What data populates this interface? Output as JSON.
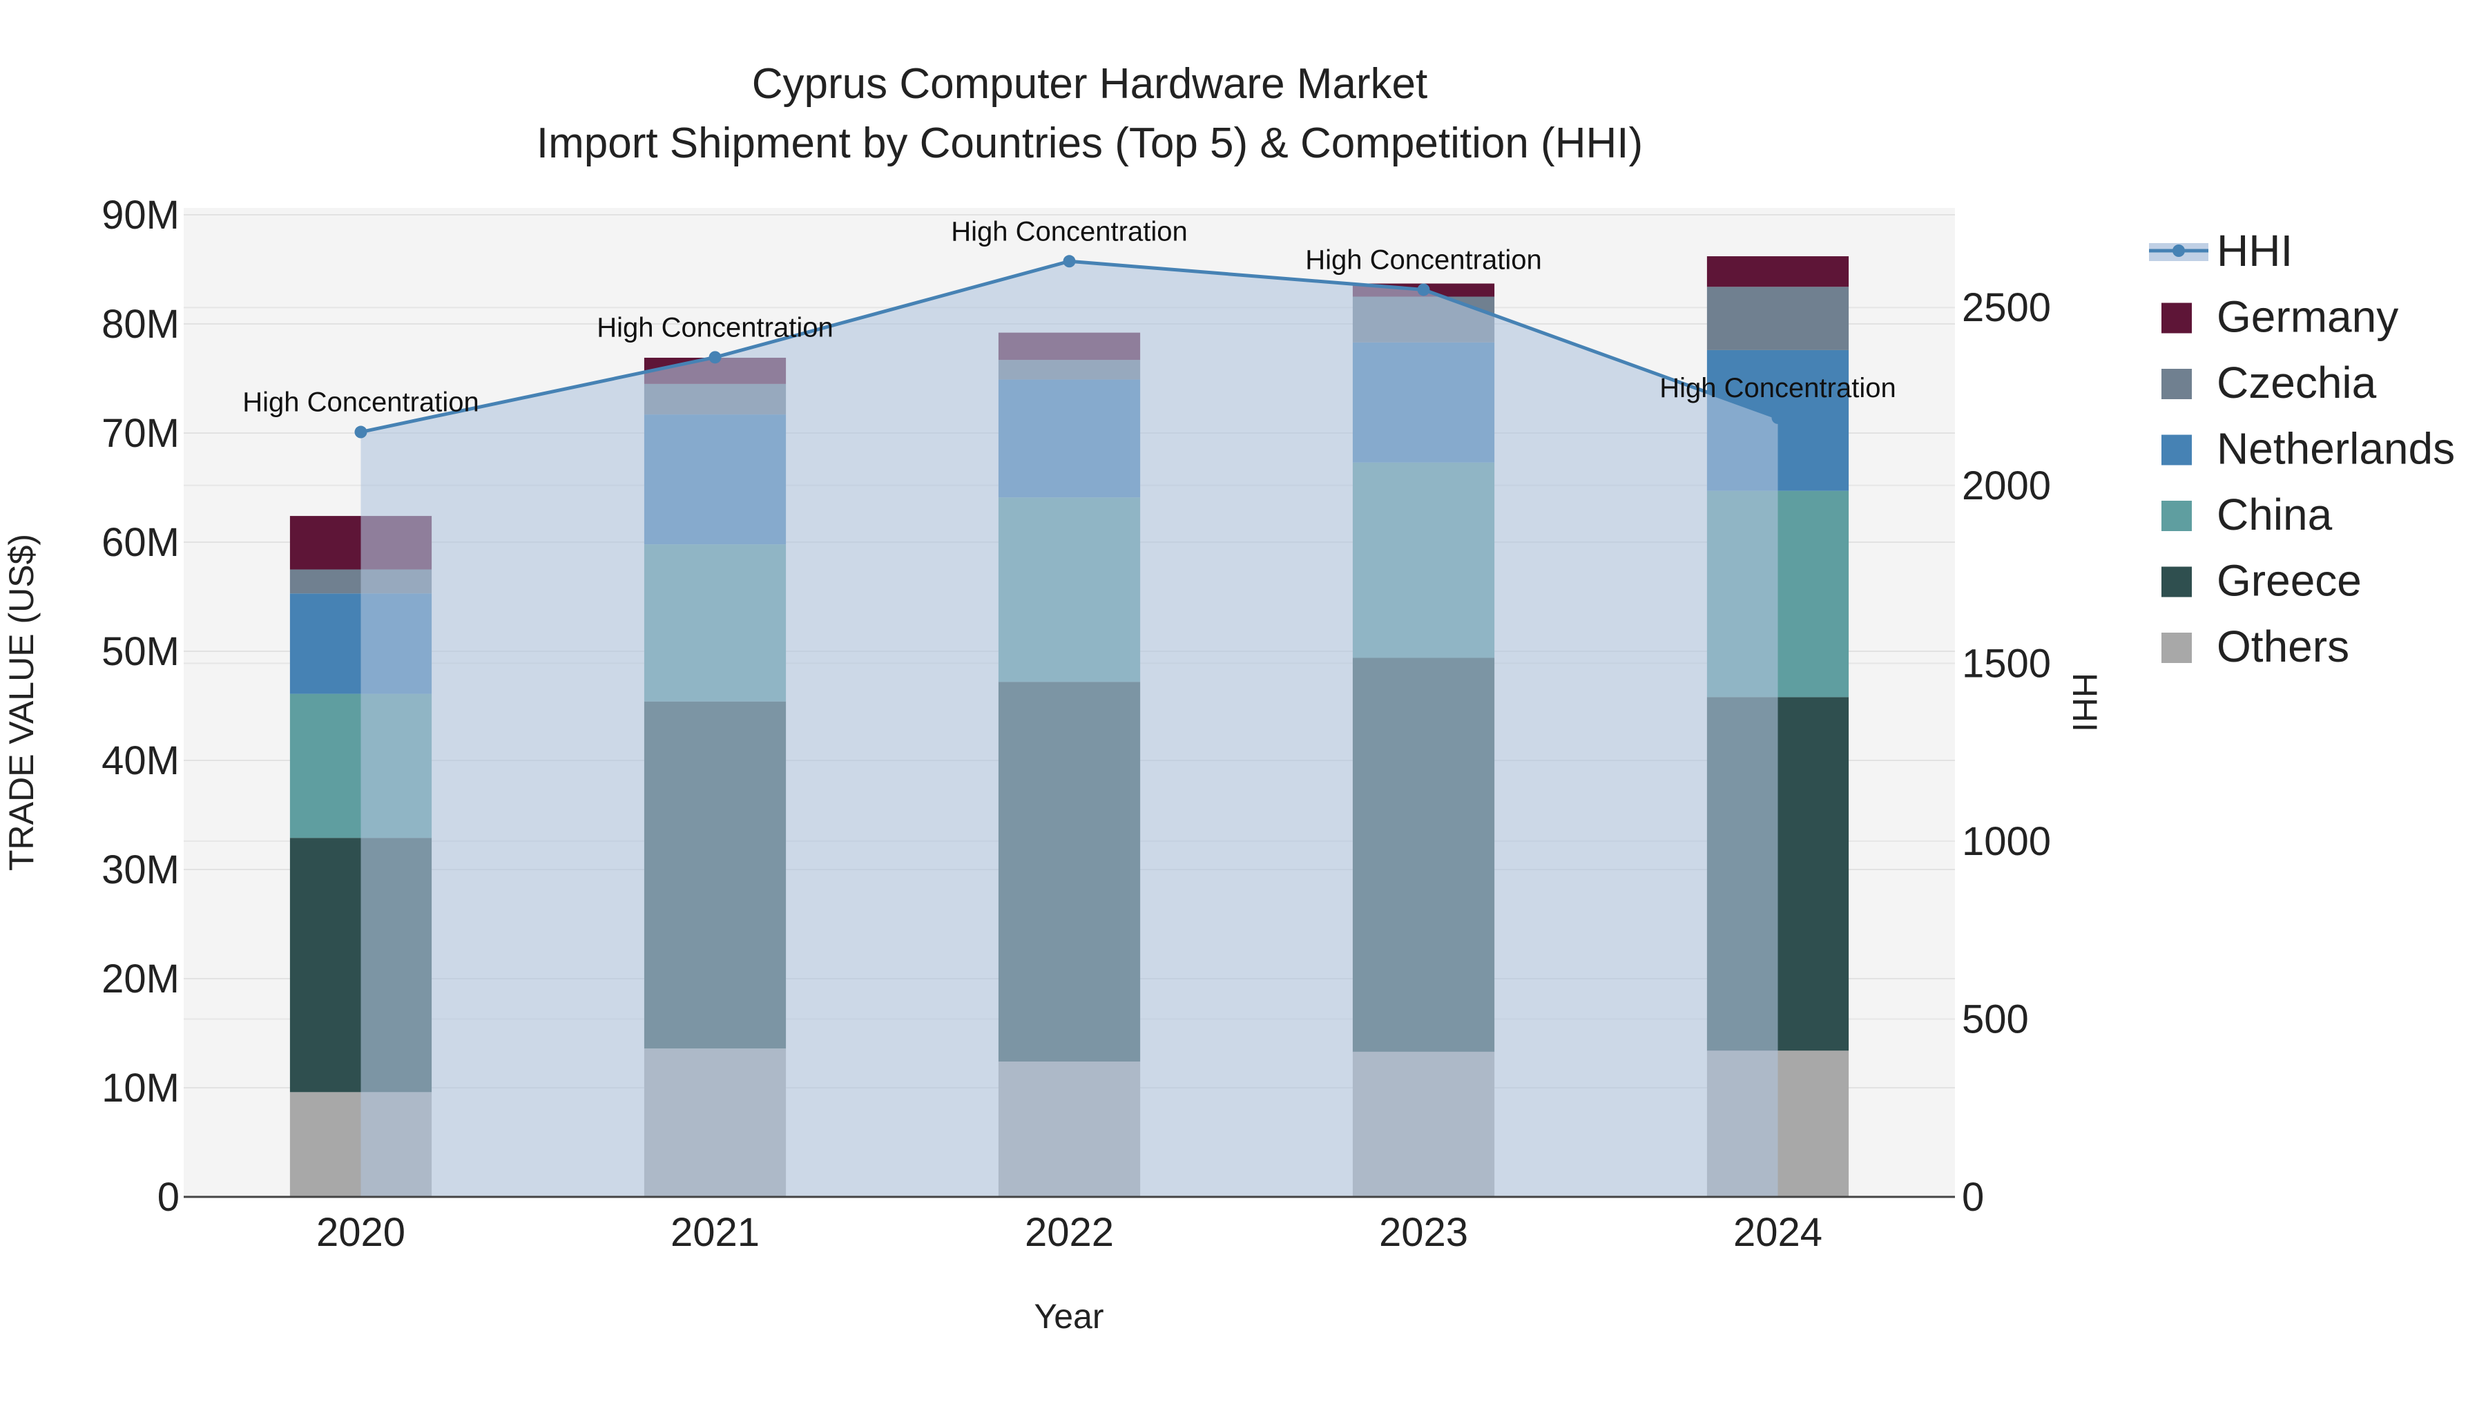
{
  "chart_data": {
    "type": "bar",
    "stacked": true,
    "title_line1": "Cyprus Computer Hardware Market",
    "title_line2": "Import Shipment by Countries (Top 5) & Competition (HHI)",
    "xlabel": "Year",
    "ylabel": "TRADE VALUE (US$)",
    "y2label": "HHI",
    "categories": [
      "2020",
      "2021",
      "2022",
      "2023",
      "2024"
    ],
    "ylim": [
      0,
      90000000
    ],
    "y_ticks": [
      0,
      10000000,
      20000000,
      30000000,
      40000000,
      50000000,
      60000000,
      70000000,
      80000000,
      90000000
    ],
    "y_tick_labels": [
      "0",
      "10M",
      "20M",
      "30M",
      "40M",
      "50M",
      "60M",
      "70M",
      "80M",
      "90M"
    ],
    "y2lim": [
      0,
      2780
    ],
    "y2_ticks": [
      0,
      500,
      1000,
      1500,
      2000,
      2500
    ],
    "y2_tick_labels": [
      "0",
      "500",
      "1000",
      "1500",
      "2000",
      "2500"
    ],
    "series": [
      {
        "name": "Others",
        "color": "#a8a8a8",
        "values": [
          9.6,
          13.6,
          12.4,
          13.3,
          13.4
        ]
      },
      {
        "name": "Greece",
        "color": "#2f4f4f",
        "values": [
          23.3,
          31.8,
          34.8,
          36.1,
          32.4
        ]
      },
      {
        "name": "China",
        "color": "#5f9ea0",
        "values": [
          13.2,
          14.4,
          16.9,
          17.9,
          18.9
        ]
      },
      {
        "name": "Netherlands",
        "color": "#4682b4",
        "values": [
          9.2,
          11.9,
          10.8,
          11.0,
          12.9
        ]
      },
      {
        "name": "Czechia",
        "color": "#708090",
        "values": [
          2.2,
          2.8,
          1.8,
          4.2,
          5.8
        ]
      },
      {
        "name": "Germany",
        "color": "#5e1537",
        "values": [
          4.9,
          2.4,
          2.5,
          1.2,
          2.8
        ]
      }
    ],
    "value_unit_multiplier": 1000000,
    "hhi": {
      "name": "HHI",
      "color": "#4682b4",
      "fill_color": "#b0c4de",
      "values": [
        2150,
        2360,
        2630,
        2550,
        2190
      ],
      "annotation": "High Concentration"
    },
    "legend_order": [
      "HHI",
      "Germany",
      "Czechia",
      "Netherlands",
      "China",
      "Greece",
      "Others"
    ],
    "legend_position": "right"
  }
}
